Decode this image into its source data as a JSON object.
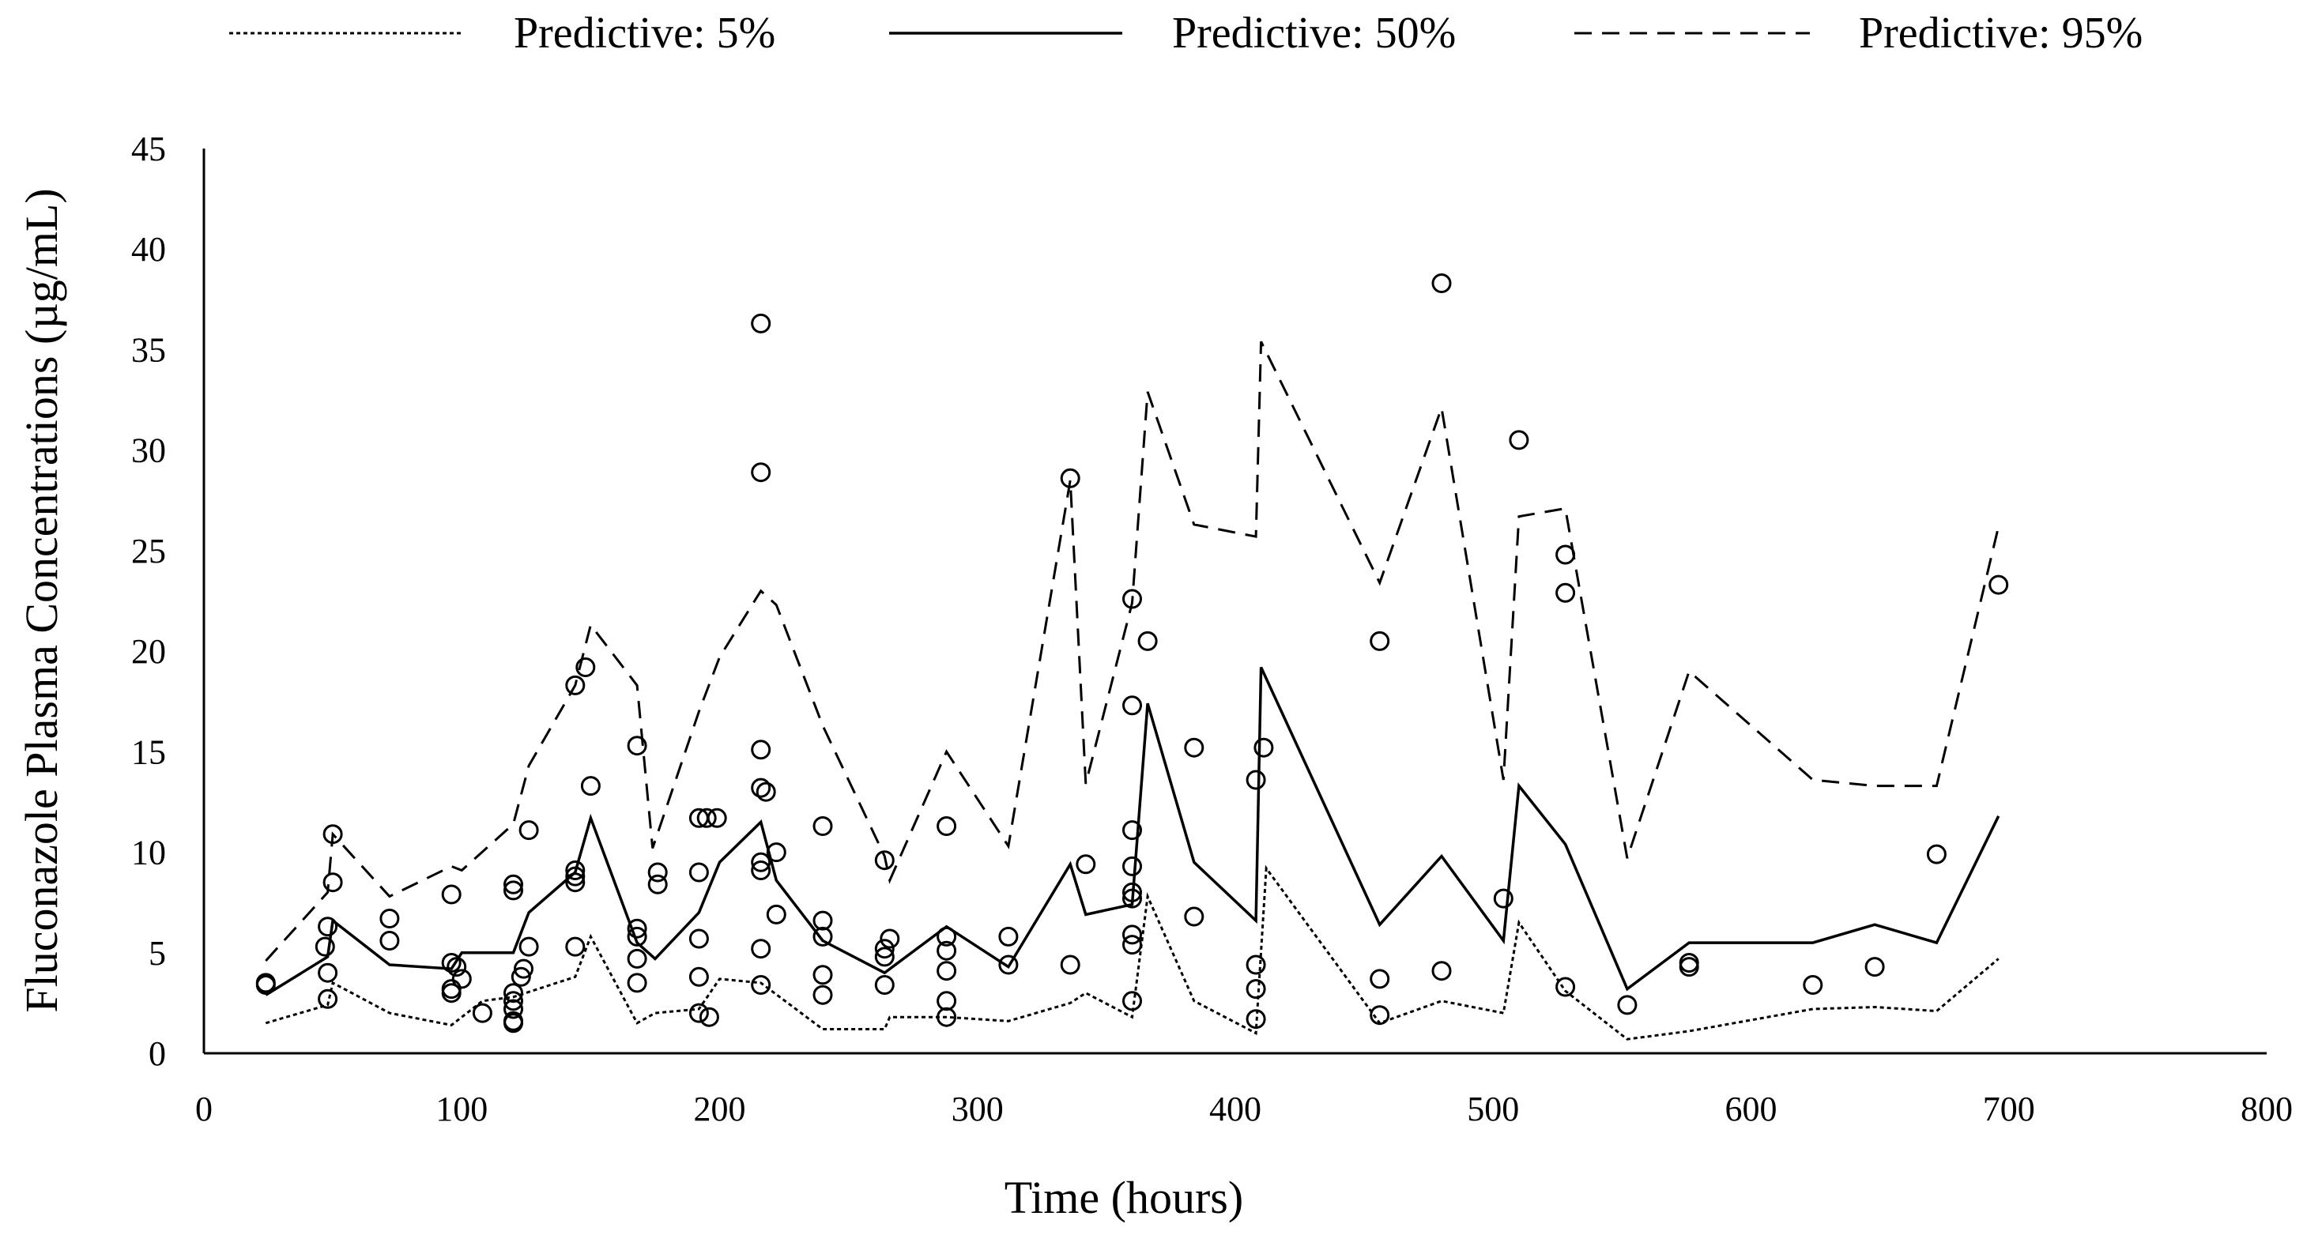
{
  "chart_data": {
    "type": "line",
    "title": "",
    "xlabel": "Time (hours)",
    "ylabel": "Fluconazole Plasma Concentrations (µg/mL)",
    "xlim": [
      0,
      800
    ],
    "ylim": [
      0,
      45
    ],
    "x_ticks": [
      0,
      100,
      200,
      300,
      400,
      500,
      600,
      700,
      800
    ],
    "y_ticks": [
      0,
      5,
      10,
      15,
      20,
      25,
      30,
      35,
      40,
      45
    ],
    "grid": false,
    "legend_position": "top",
    "series": [
      {
        "name": "Predictive: 5%",
        "style": "dotted",
        "points": [
          [
            24,
            1.5
          ],
          [
            48,
            2.4
          ],
          [
            50,
            3.5
          ],
          [
            72,
            2.0
          ],
          [
            96,
            1.4
          ],
          [
            108,
            2.6
          ],
          [
            120,
            2.8
          ],
          [
            144,
            3.8
          ],
          [
            150,
            5.8
          ],
          [
            168,
            1.5
          ],
          [
            175,
            2.0
          ],
          [
            192,
            2.2
          ],
          [
            200,
            3.7
          ],
          [
            216,
            3.5
          ],
          [
            240,
            1.2
          ],
          [
            264,
            1.2
          ],
          [
            266,
            1.8
          ],
          [
            288,
            1.8
          ],
          [
            312,
            1.6
          ],
          [
            336,
            2.5
          ],
          [
            342,
            3.0
          ],
          [
            360,
            1.8
          ],
          [
            366,
            7.8
          ],
          [
            384,
            2.6
          ],
          [
            408,
            1.0
          ],
          [
            412,
            9.2
          ],
          [
            456,
            1.5
          ],
          [
            480,
            2.6
          ],
          [
            504,
            2.0
          ],
          [
            510,
            6.5
          ],
          [
            528,
            3.1
          ],
          [
            552,
            0.7
          ],
          [
            576,
            1.1
          ],
          [
            624,
            2.2
          ],
          [
            648,
            2.3
          ],
          [
            672,
            2.1
          ],
          [
            696,
            4.7
          ]
        ]
      },
      {
        "name": "Predictive: 50%",
        "style": "solid",
        "points": [
          [
            24,
            2.9
          ],
          [
            48,
            4.8
          ],
          [
            50,
            6.6
          ],
          [
            72,
            4.4
          ],
          [
            96,
            4.2
          ],
          [
            100,
            5.0
          ],
          [
            120,
            5.0
          ],
          [
            126,
            7.0
          ],
          [
            144,
            9.0
          ],
          [
            150,
            11.7
          ],
          [
            168,
            5.5
          ],
          [
            175,
            4.7
          ],
          [
            192,
            7.0
          ],
          [
            200,
            9.5
          ],
          [
            216,
            11.5
          ],
          [
            222,
            8.6
          ],
          [
            240,
            5.6
          ],
          [
            264,
            4.0
          ],
          [
            288,
            6.3
          ],
          [
            312,
            4.3
          ],
          [
            336,
            9.4
          ],
          [
            342,
            6.9
          ],
          [
            360,
            7.4
          ],
          [
            366,
            17.4
          ],
          [
            384,
            9.5
          ],
          [
            408,
            6.6
          ],
          [
            410,
            19.2
          ],
          [
            456,
            6.4
          ],
          [
            480,
            9.8
          ],
          [
            504,
            5.6
          ],
          [
            510,
            13.3
          ],
          [
            528,
            10.4
          ],
          [
            552,
            3.2
          ],
          [
            576,
            5.5
          ],
          [
            624,
            5.5
          ],
          [
            648,
            6.4
          ],
          [
            672,
            5.5
          ],
          [
            696,
            11.8
          ]
        ]
      },
      {
        "name": "Predictive: 95%",
        "style": "dashed",
        "points": [
          [
            24,
            4.6
          ],
          [
            48,
            8.0
          ],
          [
            50,
            10.9
          ],
          [
            72,
            7.8
          ],
          [
            96,
            9.3
          ],
          [
            100,
            9.1
          ],
          [
            120,
            11.4
          ],
          [
            126,
            14.3
          ],
          [
            144,
            18.3
          ],
          [
            150,
            21.3
          ],
          [
            168,
            18.3
          ],
          [
            174,
            10.2
          ],
          [
            192,
            17.0
          ],
          [
            200,
            19.7
          ],
          [
            216,
            23.0
          ],
          [
            222,
            22.3
          ],
          [
            240,
            16.3
          ],
          [
            264,
            9.8
          ],
          [
            266,
            8.6
          ],
          [
            288,
            15.0
          ],
          [
            312,
            10.3
          ],
          [
            336,
            28.5
          ],
          [
            342,
            13.4
          ],
          [
            360,
            22.4
          ],
          [
            366,
            32.9
          ],
          [
            384,
            26.3
          ],
          [
            408,
            25.7
          ],
          [
            410,
            35.4
          ],
          [
            456,
            23.4
          ],
          [
            480,
            32.1
          ],
          [
            504,
            13.6
          ],
          [
            510,
            26.7
          ],
          [
            528,
            27.1
          ],
          [
            552,
            9.7
          ],
          [
            576,
            19.0
          ],
          [
            624,
            13.6
          ],
          [
            648,
            13.3
          ],
          [
            672,
            13.3
          ],
          [
            696,
            26.2
          ]
        ]
      }
    ],
    "observations": [
      [
        24,
        3.5
      ],
      [
        24,
        3.4
      ],
      [
        47,
        5.3
      ],
      [
        48,
        6.3
      ],
      [
        48,
        4.0
      ],
      [
        48,
        2.7
      ],
      [
        50,
        10.9
      ],
      [
        50,
        8.5
      ],
      [
        72,
        6.7
      ],
      [
        72,
        5.6
      ],
      [
        96,
        7.9
      ],
      [
        96,
        4.5
      ],
      [
        96,
        3.2
      ],
      [
        96,
        3.0
      ],
      [
        98,
        4.3
      ],
      [
        100,
        3.7
      ],
      [
        108,
        2.0
      ],
      [
        120,
        8.1
      ],
      [
        120,
        8.4
      ],
      [
        120,
        3.0
      ],
      [
        120,
        2.6
      ],
      [
        120,
        2.2
      ],
      [
        120,
        1.6
      ],
      [
        120,
        1.5
      ],
      [
        123,
        3.8
      ],
      [
        124,
        4.2
      ],
      [
        126,
        11.1
      ],
      [
        126,
        5.3
      ],
      [
        144,
        18.3
      ],
      [
        144,
        9.1
      ],
      [
        144,
        8.8
      ],
      [
        144,
        8.5
      ],
      [
        144,
        5.3
      ],
      [
        148,
        19.2
      ],
      [
        150,
        13.3
      ],
      [
        168,
        15.3
      ],
      [
        168,
        6.2
      ],
      [
        168,
        5.8
      ],
      [
        168,
        4.7
      ],
      [
        168,
        3.5
      ],
      [
        176,
        9.0
      ],
      [
        176,
        8.4
      ],
      [
        192,
        11.7
      ],
      [
        192,
        9.0
      ],
      [
        192,
        5.7
      ],
      [
        192,
        3.8
      ],
      [
        192,
        2.0
      ],
      [
        195,
        11.7
      ],
      [
        196,
        1.8
      ],
      [
        199,
        11.7
      ],
      [
        216,
        36.3
      ],
      [
        216,
        28.9
      ],
      [
        216,
        15.1
      ],
      [
        216,
        13.2
      ],
      [
        216,
        9.5
      ],
      [
        216,
        9.1
      ],
      [
        216,
        5.2
      ],
      [
        216,
        3.4
      ],
      [
        218,
        13.0
      ],
      [
        222,
        10.0
      ],
      [
        222,
        6.9
      ],
      [
        240,
        11.3
      ],
      [
        240,
        6.6
      ],
      [
        240,
        5.8
      ],
      [
        240,
        3.9
      ],
      [
        240,
        2.9
      ],
      [
        264,
        9.6
      ],
      [
        264,
        5.2
      ],
      [
        264,
        4.8
      ],
      [
        264,
        3.4
      ],
      [
        266,
        5.7
      ],
      [
        288,
        11.3
      ],
      [
        288,
        5.8
      ],
      [
        288,
        5.1
      ],
      [
        288,
        4.1
      ],
      [
        288,
        2.6
      ],
      [
        288,
        1.8
      ],
      [
        312,
        5.8
      ],
      [
        312,
        4.4
      ],
      [
        336,
        28.6
      ],
      [
        336,
        4.4
      ],
      [
        342,
        9.4
      ],
      [
        360,
        22.6
      ],
      [
        360,
        17.3
      ],
      [
        360,
        11.1
      ],
      [
        360,
        9.3
      ],
      [
        360,
        8.0
      ],
      [
        360,
        7.7
      ],
      [
        360,
        5.9
      ],
      [
        360,
        5.4
      ],
      [
        360,
        2.6
      ],
      [
        366,
        20.5
      ],
      [
        384,
        15.2
      ],
      [
        384,
        6.8
      ],
      [
        408,
        13.6
      ],
      [
        408,
        4.4
      ],
      [
        408,
        3.2
      ],
      [
        408,
        1.7
      ],
      [
        411,
        15.2
      ],
      [
        456,
        20.5
      ],
      [
        456,
        3.7
      ],
      [
        456,
        1.9
      ],
      [
        480,
        38.3
      ],
      [
        480,
        4.1
      ],
      [
        504,
        7.7
      ],
      [
        510,
        30.5
      ],
      [
        528,
        24.8
      ],
      [
        528,
        22.9
      ],
      [
        528,
        3.3
      ],
      [
        552,
        2.4
      ],
      [
        576,
        4.5
      ],
      [
        576,
        4.3
      ],
      [
        624,
        3.4
      ],
      [
        648,
        4.3
      ],
      [
        672,
        9.9
      ],
      [
        696,
        23.3
      ]
    ]
  }
}
